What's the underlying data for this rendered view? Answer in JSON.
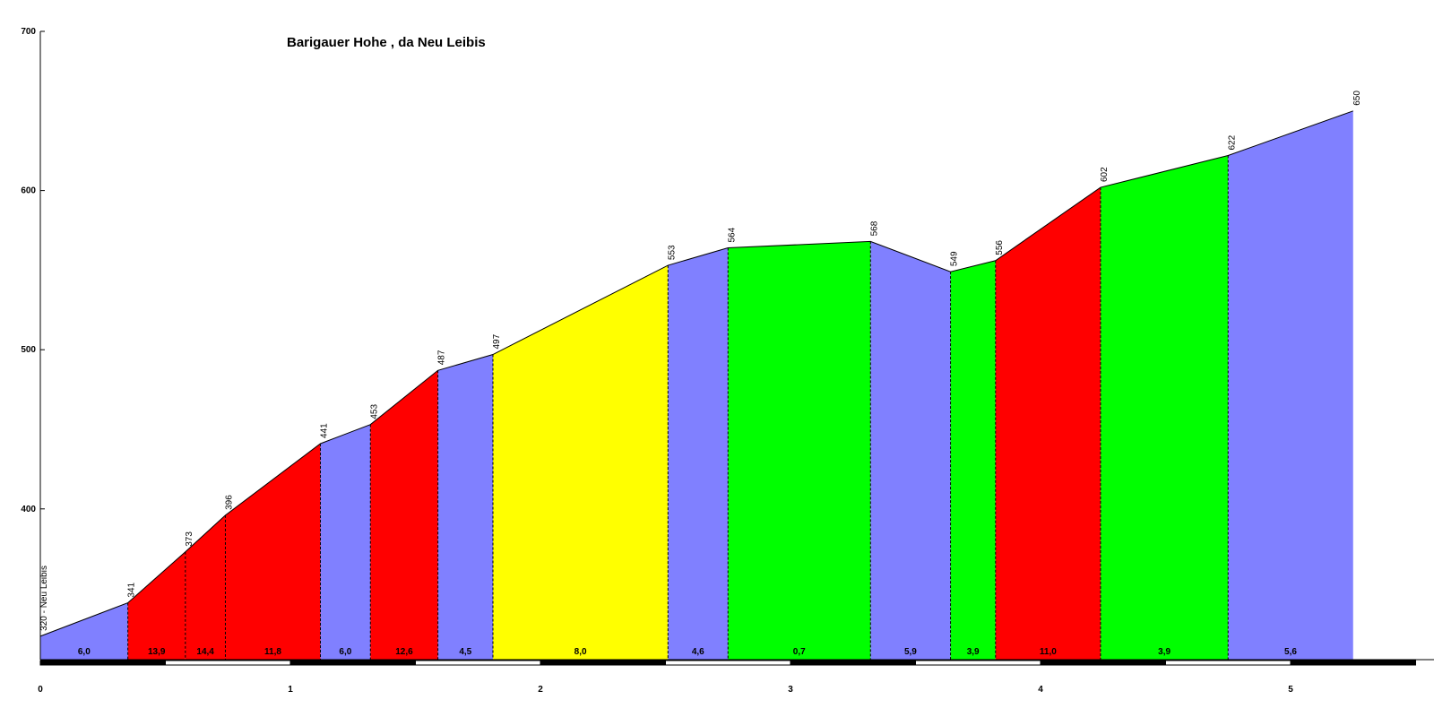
{
  "chart_data": {
    "type": "area",
    "title": "Barigauer Hohe , da Neu Leibis",
    "xlabel": "",
    "ylabel": "",
    "xlim": [
      0,
      5.5
    ],
    "ylim": [
      300,
      700
    ],
    "y_ticks": [
      "400",
      "500",
      "600",
      "700"
    ],
    "x_ticks": [
      "0",
      "1",
      "2",
      "3",
      "4",
      "5"
    ],
    "start_label": "320 - Neu Leibis",
    "points": [
      {
        "x": 0.0,
        "y": 320,
        "label": "320 - Neu Leibis"
      },
      {
        "x": 0.35,
        "y": 341,
        "label": "341"
      },
      {
        "x": 0.58,
        "y": 373,
        "label": "373"
      },
      {
        "x": 0.74,
        "y": 396,
        "label": "396"
      },
      {
        "x": 1.12,
        "y": 441,
        "label": "441"
      },
      {
        "x": 1.32,
        "y": 453,
        "label": "453"
      },
      {
        "x": 1.59,
        "y": 487,
        "label": "487"
      },
      {
        "x": 1.81,
        "y": 497,
        "label": "497"
      },
      {
        "x": 2.51,
        "y": 553,
        "label": "553"
      },
      {
        "x": 2.75,
        "y": 564,
        "label": "564"
      },
      {
        "x": 3.32,
        "y": 568,
        "label": "568"
      },
      {
        "x": 3.64,
        "y": 549,
        "label": "549"
      },
      {
        "x": 3.82,
        "y": 556,
        "label": "556"
      },
      {
        "x": 4.24,
        "y": 602,
        "label": "602"
      },
      {
        "x": 4.75,
        "y": 622,
        "label": "622"
      },
      {
        "x": 5.25,
        "y": 650,
        "label": "650"
      }
    ],
    "segments": [
      {
        "gradient": "6,0",
        "color": "#8080ff"
      },
      {
        "gradient": "13,9",
        "color": "#ff0000"
      },
      {
        "gradient": "14,4",
        "color": "#ff0000"
      },
      {
        "gradient": "11,8",
        "color": "#ff0000"
      },
      {
        "gradient": "6,0",
        "color": "#8080ff"
      },
      {
        "gradient": "12,6",
        "color": "#ff0000"
      },
      {
        "gradient": "4,5",
        "color": "#8080ff"
      },
      {
        "gradient": "8,0",
        "color": "#ffff00"
      },
      {
        "gradient": "4,6",
        "color": "#8080ff"
      },
      {
        "gradient": "0,7",
        "color": "#00ff00"
      },
      {
        "gradient": "5,9",
        "color": "#8080ff"
      },
      {
        "gradient": "3,9",
        "color": "#00ff00"
      },
      {
        "gradient": "11,0",
        "color": "#ff0000"
      },
      {
        "gradient": "3,9",
        "color": "#00ff00"
      },
      {
        "gradient": "5,6",
        "color": "#8080ff"
      }
    ]
  }
}
